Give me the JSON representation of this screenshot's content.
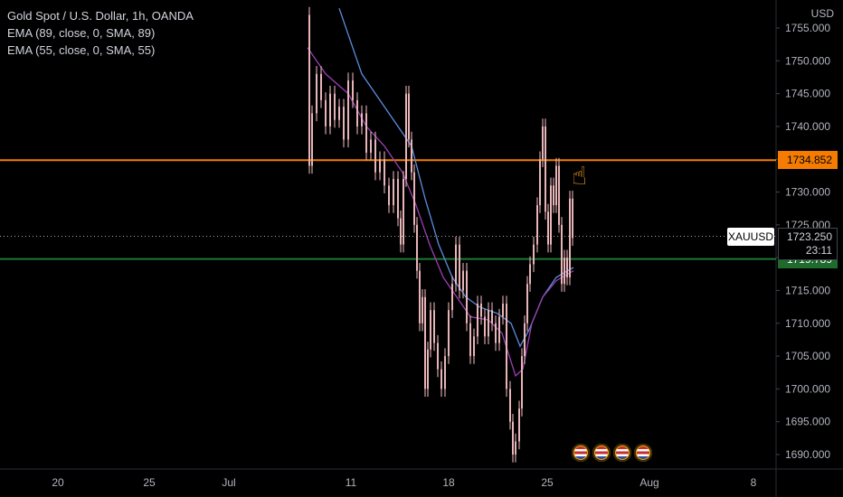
{
  "legend": {
    "title": "Gold Spot / U.S. Dollar, 1h, OANDA",
    "ema1": "EMA (89, close, 0, SMA, 89)",
    "ema2": "EMA (55, close, 0, SMA, 55)"
  },
  "price_axis": {
    "currency": "USD",
    "ticks": [
      "1755.000",
      "1750.000",
      "1745.000",
      "1740.000",
      "1735.000",
      "1730.000",
      "1725.000",
      "1720.000",
      "1715.000",
      "1710.000",
      "1705.000",
      "1700.000",
      "1695.000",
      "1690.000"
    ]
  },
  "time_axis": {
    "ticks": [
      "20",
      "25",
      "Jul",
      "11",
      "18",
      "25",
      "Aug",
      "8"
    ]
  },
  "labels": {
    "resistance": "1734.852",
    "support": "1719.789",
    "symbol": "XAUUSD",
    "current_price": "1723.250",
    "countdown": "23:11"
  },
  "icons": {
    "hand": "pointing-hand-icon",
    "event": "us-flag-event-icon"
  },
  "colors": {
    "background": "#000000",
    "resistance_line": "#f57c00",
    "support_line": "#1e7a33",
    "support_tag": "#1f6b2e",
    "ema89": "#5b8ddc",
    "ema55": "#9c3fb3",
    "candle": "#e8b4b8"
  },
  "chart_data": {
    "type": "line",
    "title": "Gold Spot / U.S. Dollar, 1h, OANDA",
    "ylim": [
      1688,
      1757
    ],
    "y_ticks": [
      1755,
      1750,
      1745,
      1740,
      1735,
      1730,
      1725,
      1720,
      1715,
      1710,
      1705,
      1700,
      1695,
      1690
    ],
    "x_labels": [
      "20",
      "25",
      "Jul",
      "11",
      "18",
      "25",
      "Aug",
      "8"
    ],
    "horizontal_lines": [
      {
        "value": 1734.852,
        "color": "#f57c00"
      },
      {
        "value": 1719.789,
        "color": "#1e7a33"
      },
      {
        "value": 1723.25,
        "color": "#b0a2a2",
        "style": "dotted"
      }
    ],
    "series": [
      {
        "name": "EMA (89, close, 0, SMA, 89)",
        "color": "#5b8ddc",
        "points": [
          [
            375,
            1758
          ],
          [
            400,
            1748
          ],
          [
            430,
            1742
          ],
          [
            455,
            1737
          ],
          [
            470,
            1729
          ],
          [
            485,
            1722
          ],
          [
            500,
            1717
          ],
          [
            515,
            1714
          ],
          [
            530,
            1712.5
          ],
          [
            550,
            1711.5
          ],
          [
            565,
            1710
          ],
          [
            575,
            1706.5
          ],
          [
            585,
            1709
          ],
          [
            600,
            1714
          ],
          [
            615,
            1717
          ],
          [
            634,
            1718.5
          ]
        ]
      },
      {
        "name": "EMA (55, close, 0, SMA, 55)",
        "color": "#9c3fb3",
        "points": [
          [
            340,
            1752
          ],
          [
            360,
            1748
          ],
          [
            385,
            1745
          ],
          [
            405,
            1740
          ],
          [
            425,
            1737
          ],
          [
            445,
            1733
          ],
          [
            460,
            1728
          ],
          [
            475,
            1722
          ],
          [
            490,
            1717
          ],
          [
            505,
            1714
          ],
          [
            520,
            1711
          ],
          [
            540,
            1710.5
          ],
          [
            555,
            1708.5
          ],
          [
            570,
            1702
          ],
          [
            578,
            1703
          ],
          [
            588,
            1710
          ],
          [
            600,
            1714
          ],
          [
            615,
            1716.5
          ],
          [
            634,
            1718
          ]
        ]
      },
      {
        "name": "XAUUSD 1h",
        "color": "#e8b4b8",
        "points": [
          [
            340,
            1757
          ],
          [
            342,
            1734
          ],
          [
            345,
            1742
          ],
          [
            350,
            1748
          ],
          [
            355,
            1744
          ],
          [
            360,
            1740
          ],
          [
            365,
            1745
          ],
          [
            370,
            1741
          ],
          [
            375,
            1743
          ],
          [
            380,
            1738
          ],
          [
            385,
            1747
          ],
          [
            390,
            1744
          ],
          [
            395,
            1740
          ],
          [
            400,
            1742
          ],
          [
            405,
            1736
          ],
          [
            410,
            1738
          ],
          [
            415,
            1733
          ],
          [
            420,
            1735
          ],
          [
            425,
            1731
          ],
          [
            430,
            1728
          ],
          [
            435,
            1732
          ],
          [
            440,
            1726
          ],
          [
            443,
            1722
          ],
          [
            446,
            1732
          ],
          [
            449,
            1745
          ],
          [
            452,
            1738
          ],
          [
            455,
            1733
          ],
          [
            458,
            1725
          ],
          [
            461,
            1718
          ],
          [
            464,
            1710
          ],
          [
            467,
            1714
          ],
          [
            470,
            1700
          ],
          [
            473,
            1706
          ],
          [
            476,
            1712
          ],
          [
            480,
            1707
          ],
          [
            484,
            1703
          ],
          [
            488,
            1700
          ],
          [
            492,
            1705
          ],
          [
            496,
            1712
          ],
          [
            500,
            1716
          ],
          [
            504,
            1722
          ],
          [
            508,
            1715
          ],
          [
            512,
            1718
          ],
          [
            516,
            1710
          ],
          [
            520,
            1705
          ],
          [
            524,
            1708
          ],
          [
            528,
            1713
          ],
          [
            532,
            1711
          ],
          [
            536,
            1708
          ],
          [
            540,
            1712
          ],
          [
            544,
            1710
          ],
          [
            548,
            1707
          ],
          [
            552,
            1711
          ],
          [
            556,
            1713
          ],
          [
            560,
            1700
          ],
          [
            564,
            1695
          ],
          [
            567,
            1690
          ],
          [
            570,
            1692
          ],
          [
            574,
            1697
          ],
          [
            577,
            1705
          ],
          [
            580,
            1710
          ],
          [
            583,
            1716
          ],
          [
            586,
            1719
          ],
          [
            590,
            1722
          ],
          [
            594,
            1728
          ],
          [
            597,
            1735
          ],
          [
            600,
            1740
          ],
          [
            603,
            1727
          ],
          [
            606,
            1722
          ],
          [
            609,
            1731
          ],
          [
            612,
            1728
          ],
          [
            615,
            1734
          ],
          [
            618,
            1725
          ],
          [
            621,
            1716
          ],
          [
            624,
            1720
          ],
          [
            627,
            1717
          ],
          [
            630,
            1729
          ],
          [
            633,
            1723
          ]
        ]
      }
    ]
  }
}
